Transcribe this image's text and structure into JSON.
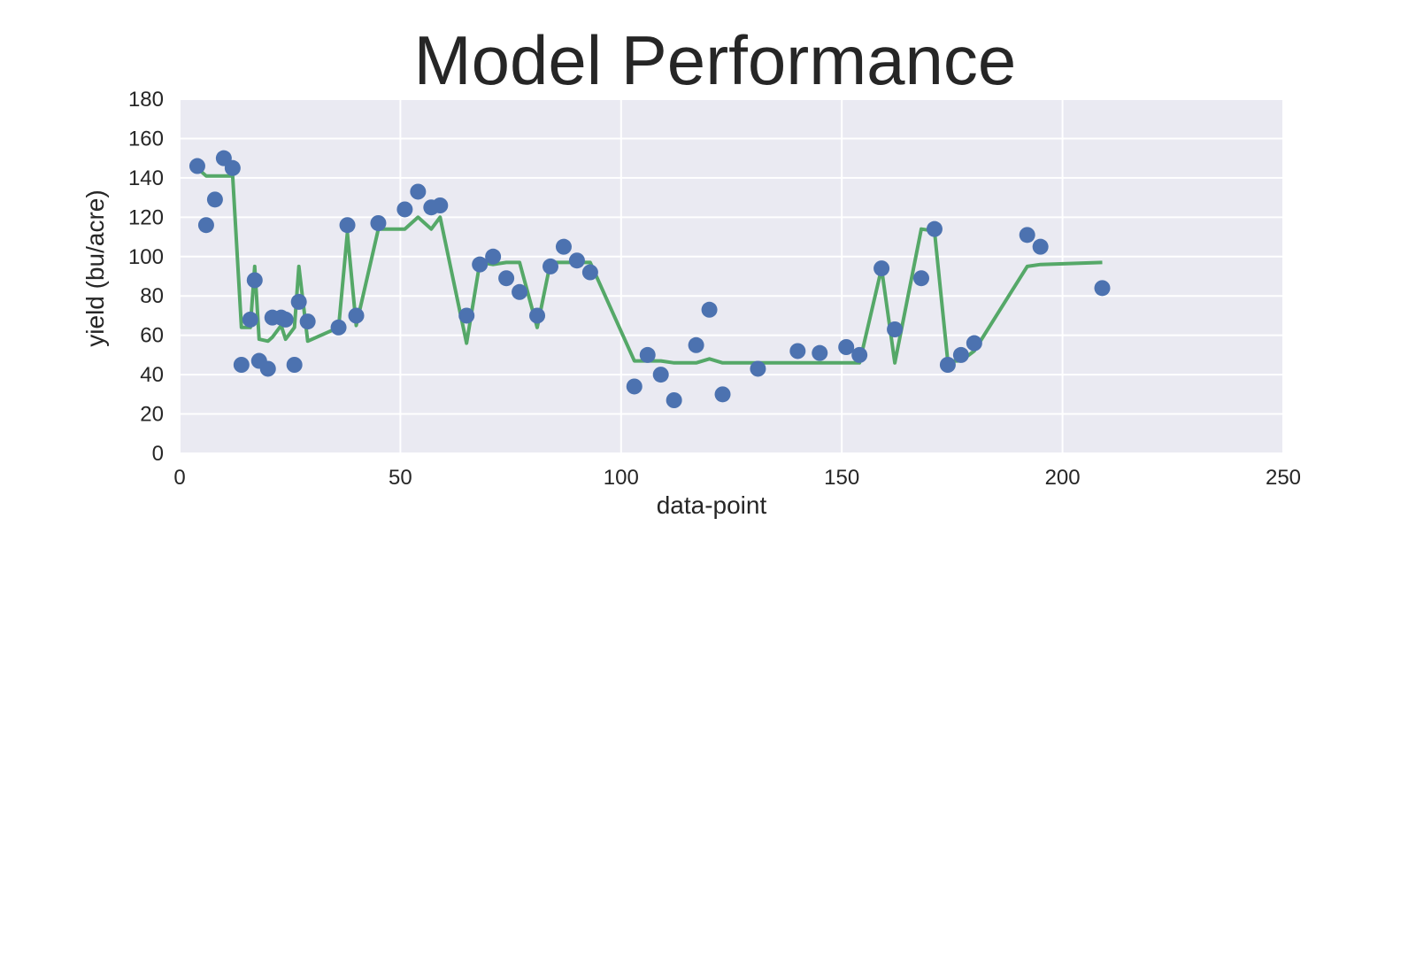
{
  "chart_data": {
    "type": "scatter",
    "title": "Model Performance",
    "xlabel": "data-point",
    "ylabel": "yield (bu/acre)",
    "xlim": [
      0,
      250
    ],
    "ylim": [
      0,
      180
    ],
    "xticks": [
      0,
      50,
      100,
      150,
      200,
      250
    ],
    "yticks": [
      0,
      20,
      40,
      60,
      80,
      100,
      120,
      140,
      160,
      180
    ],
    "grid": true,
    "colors": {
      "background": "#eaeaf2",
      "grid": "#ffffff",
      "points": "#4c72b0",
      "line": "#55a868"
    },
    "series": [
      {
        "type": "scatter",
        "x": [
          4,
          6,
          8,
          10,
          12,
          14,
          16,
          17,
          18,
          20,
          21,
          23,
          24,
          26,
          27,
          29,
          36,
          38,
          40,
          45,
          51,
          54,
          57,
          59,
          65,
          68,
          71,
          74,
          77,
          81,
          84,
          87,
          90,
          93,
          103,
          106,
          109,
          112,
          117,
          120,
          123,
          131,
          140,
          145,
          151,
          154,
          159,
          162,
          168,
          171,
          174,
          177,
          180,
          192,
          195,
          209
        ],
        "y": [
          146,
          116,
          129,
          150,
          145,
          45,
          68,
          88,
          47,
          43,
          69,
          69,
          68,
          45,
          77,
          67,
          64,
          116,
          70,
          117,
          124,
          133,
          125,
          126,
          70,
          96,
          100,
          89,
          82,
          70,
          95,
          105,
          98,
          92,
          34,
          50,
          40,
          27,
          55,
          73,
          30,
          43,
          52,
          51,
          54,
          50,
          94,
          63,
          89,
          114,
          45,
          50,
          56,
          111,
          105,
          84
        ]
      },
      {
        "type": "line",
        "x": [
          4,
          6,
          8,
          10,
          12,
          14,
          16,
          17,
          18,
          20,
          21,
          23,
          24,
          26,
          27,
          29,
          36,
          38,
          40,
          45,
          51,
          54,
          57,
          59,
          65,
          68,
          71,
          74,
          77,
          81,
          84,
          87,
          90,
          93,
          103,
          106,
          109,
          112,
          117,
          120,
          123,
          131,
          140,
          145,
          151,
          154,
          159,
          162,
          168,
          171,
          174,
          177,
          180,
          192,
          195,
          209
        ],
        "y": [
          145,
          141,
          141,
          141,
          141,
          64,
          64,
          95,
          58,
          57,
          59,
          65,
          58,
          64,
          95,
          57,
          64,
          112,
          65,
          114,
          114,
          120,
          114,
          120,
          56,
          97,
          96,
          97,
          97,
          64,
          97,
          97,
          97,
          97,
          47,
          47,
          47,
          46,
          46,
          48,
          46,
          46,
          46,
          46,
          46,
          46,
          94,
          46,
          114,
          113,
          47,
          47,
          52,
          95,
          96,
          97
        ]
      }
    ]
  }
}
